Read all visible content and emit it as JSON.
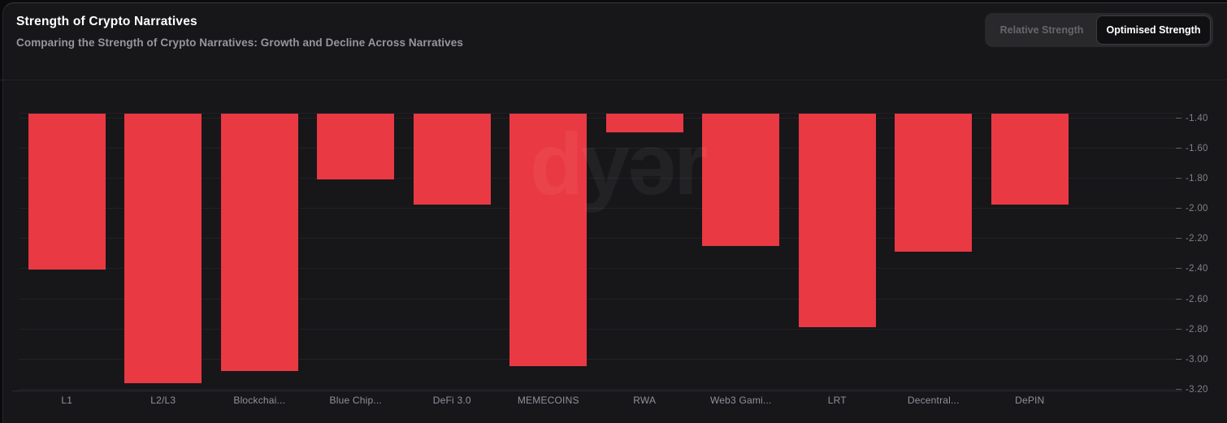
{
  "header": {
    "title": "Strength of Crypto Narratives",
    "subtitle": "Comparing the Strength of Crypto Narratives: Growth and Decline Across Narratives"
  },
  "toggle": {
    "options": [
      {
        "label": "Relative Strength",
        "active": false
      },
      {
        "label": "Optimised Strength",
        "active": true
      }
    ]
  },
  "watermark": {
    "text": "dyər"
  },
  "colors": {
    "background": "#17171a",
    "bar": "#e93943",
    "gridline": "#222226",
    "axis_line": "#2d2d32",
    "tick_label": "#808086",
    "category_label": "#90909a",
    "title": "#ffffff",
    "subtitle": "#96969c",
    "toggle_bg": "#29292c",
    "toggle_active_bg": "#101013",
    "toggle_inactive_text": "#66666c",
    "toggle_active_text": "#ffffff"
  },
  "chart_data": {
    "type": "bar",
    "title": "Strength of Crypto Narratives",
    "xlabel": "",
    "ylabel": "",
    "categories": [
      "L1",
      "L2/L3",
      "Blockchai...",
      "Blue Chip...",
      "DeFi 3.0",
      "MEMECOINS",
      "RWA",
      "Web3 Gami...",
      "LRT",
      "Decentral...",
      "DePIN"
    ],
    "values": [
      -2.41,
      -3.16,
      -3.08,
      -1.81,
      -1.98,
      -3.05,
      -1.5,
      -2.25,
      -2.79,
      -2.29,
      -1.98
    ],
    "ylim": [
      -3.21,
      -1.37
    ],
    "yticks": [
      -1.4,
      -1.6,
      -1.8,
      -2.0,
      -2.2,
      -2.4,
      -2.6,
      -2.8,
      -3.0,
      -3.2
    ],
    "grid": true,
    "legend": false,
    "bar_baseline": "top",
    "axis_position": "right"
  }
}
